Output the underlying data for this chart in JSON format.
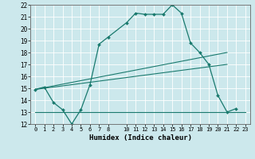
{
  "title": "",
  "xlabel": "Humidex (Indice chaleur)",
  "xlim": [
    -0.5,
    23.5
  ],
  "ylim": [
    12,
    22
  ],
  "yticks": [
    12,
    13,
    14,
    15,
    16,
    17,
    18,
    19,
    20,
    21,
    22
  ],
  "background_color": "#cce8ec",
  "grid_color": "#ffffff",
  "line_color": "#1a7a6e",
  "series_main": {
    "x": [
      0,
      1,
      2,
      3,
      4,
      5,
      6,
      7,
      8,
      10,
      11,
      12,
      13,
      14,
      15,
      16,
      17,
      18,
      19,
      20,
      21,
      22
    ],
    "y": [
      14.9,
      15.1,
      13.8,
      13.2,
      12.0,
      13.2,
      15.3,
      18.7,
      19.3,
      20.5,
      21.3,
      21.2,
      21.2,
      21.2,
      22.0,
      21.3,
      18.8,
      18.0,
      17.0,
      14.4,
      13.0,
      13.3
    ]
  },
  "series_flat": {
    "x": [
      0,
      23
    ],
    "y": [
      13.0,
      13.0
    ]
  },
  "series_trend1": {
    "x": [
      0,
      21
    ],
    "y": [
      14.9,
      18.0
    ]
  },
  "series_trend2": {
    "x": [
      0,
      21
    ],
    "y": [
      14.9,
      17.0
    ]
  },
  "xtick_positions": [
    0,
    1,
    2,
    3,
    4,
    5,
    6,
    7,
    8,
    10,
    11,
    12,
    13,
    14,
    15,
    16,
    17,
    18,
    19,
    20,
    21,
    22,
    23
  ],
  "xtick_labels": [
    "0",
    "1",
    "2",
    "3",
    "4",
    "5",
    "6",
    "7",
    "8",
    "10",
    "11",
    "12",
    "13",
    "14",
    "15",
    "16",
    "17",
    "18",
    "19",
    "20",
    "21",
    "22",
    "23"
  ]
}
